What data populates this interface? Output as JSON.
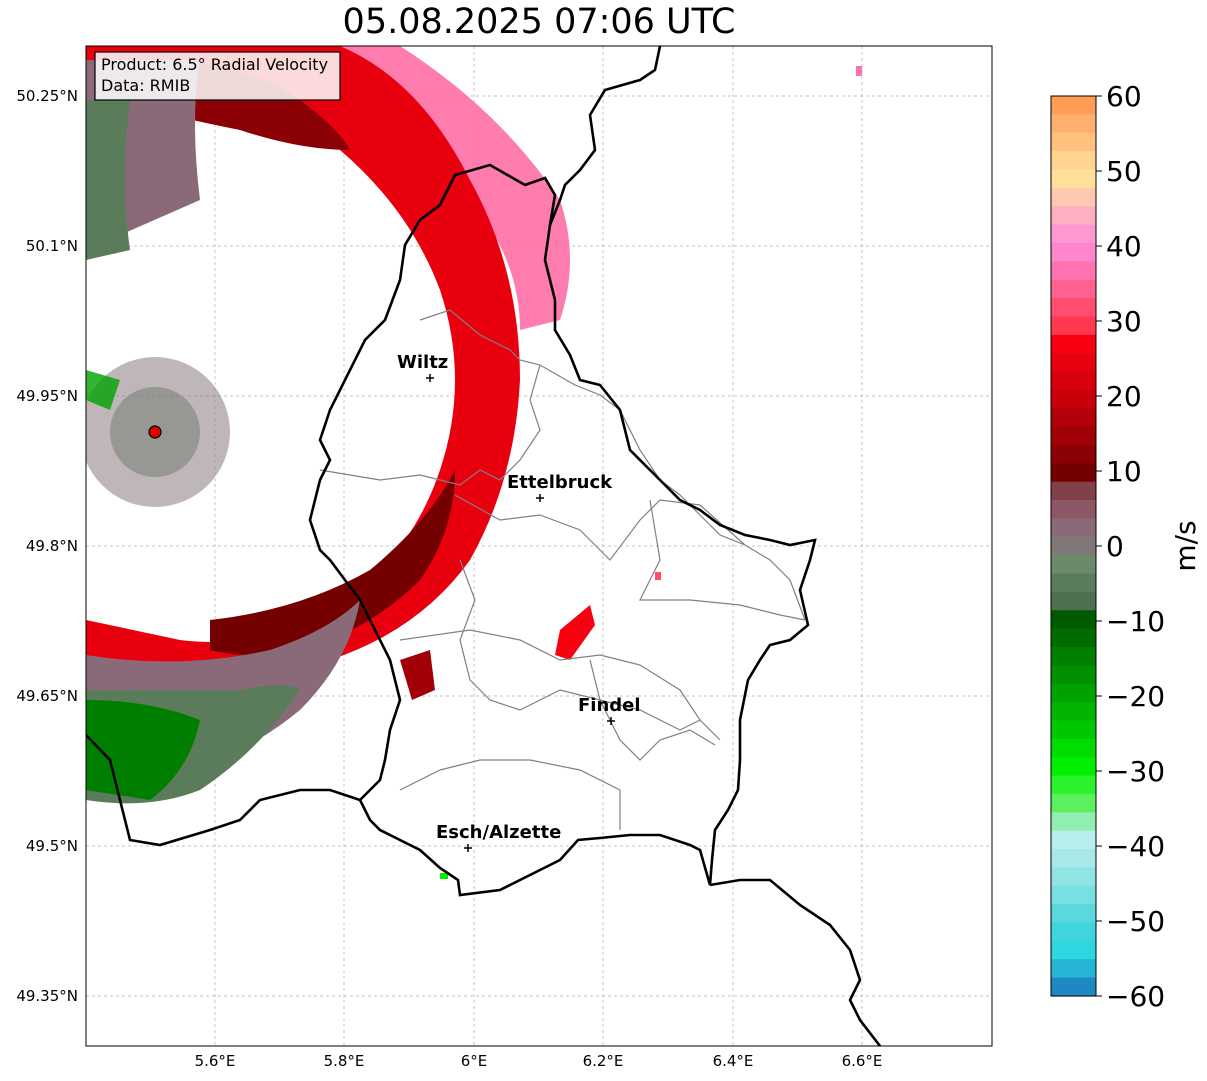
{
  "title": "05.08.2025 07:06 UTC",
  "info_box": {
    "product": "Product: 6.5° Radial Velocity",
    "data_source": "Data: RMIB"
  },
  "axes": {
    "y_ticks": [
      "50.25°N",
      "50.1°N",
      "49.95°N",
      "49.8°N",
      "49.65°N",
      "49.5°N",
      "49.35°N"
    ],
    "x_ticks": [
      "5.6°E",
      "5.8°E",
      "6°E",
      "6.2°E",
      "6.4°E",
      "6.6°E"
    ]
  },
  "cities": [
    {
      "name": "Wiltz"
    },
    {
      "name": "Ettelbruck"
    },
    {
      "name": "Findel"
    },
    {
      "name": "Esch/Alzette"
    }
  ],
  "colorbar": {
    "unit": "m/s",
    "tick_labels": [
      "60",
      "50",
      "40",
      "30",
      "20",
      "10",
      "0",
      "−10",
      "−20",
      "−30",
      "−40",
      "−50",
      "−60"
    ],
    "colors": [
      "#ff9d55",
      "#ffb070",
      "#ffc27e",
      "#ffd48f",
      "#ffe09a",
      "#ffc8b0",
      "#ffb0c0",
      "#ff98d0",
      "#ff86cc",
      "#ff74b0",
      "#ff6290",
      "#ff4e6e",
      "#ff3a50",
      "#f80010",
      "#e8000e",
      "#d8000c",
      "#c8000a",
      "#b40008",
      "#a00006",
      "#8a0004",
      "#740000",
      "#82404a",
      "#8c5866",
      "#8a6a78",
      "#7e7878",
      "#6a8a6a",
      "#5a7c5a",
      "#4e704e",
      "#005a00",
      "#006c00",
      "#007e00",
      "#009000",
      "#00a200",
      "#00b400",
      "#00c800",
      "#00dc00",
      "#00ee00",
      "#2cf22c",
      "#5cf05c",
      "#90eeb0",
      "#b8eeee",
      "#a8e8e8",
      "#90e4e4",
      "#78e0e0",
      "#5ad8dc",
      "#40d4dc",
      "#2ed6e0",
      "#24b4d4",
      "#1e88c4"
    ]
  },
  "radar_site_color": "#dd0000"
}
